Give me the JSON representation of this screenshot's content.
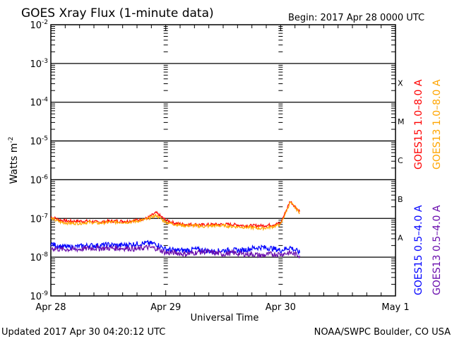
{
  "chart_data": {
    "type": "line",
    "title": "GOES Xray Flux (1-minute data)",
    "begin_label": "Begin:  2017 Apr 28 0000 UTC",
    "xlabel": "Universal Time",
    "ylabel": "Watts m",
    "ylabel_sup": "-2",
    "x_unit": "hours since 2017 Apr 28 0000 UTC",
    "xlim": [
      0,
      72
    ],
    "x_ticks": [
      {
        "v": 0,
        "label": "Apr 28"
      },
      {
        "v": 24,
        "label": "Apr 29"
      },
      {
        "v": 48,
        "label": "Apr 30"
      },
      {
        "v": 72,
        "label": "May 1"
      }
    ],
    "yscale": "log",
    "ylim": [
      1e-09,
      0.01
    ],
    "y_ticks": [
      {
        "exp": -2
      },
      {
        "exp": -3
      },
      {
        "exp": -4
      },
      {
        "exp": -5
      },
      {
        "exp": -6
      },
      {
        "exp": -7
      },
      {
        "exp": -8
      },
      {
        "exp": -9
      }
    ],
    "grid": "horizontal at decades",
    "flare_classes": [
      "X",
      "M",
      "C",
      "B",
      "A"
    ],
    "x": [
      0,
      2,
      4,
      6,
      8,
      10,
      12,
      14,
      16,
      18,
      20,
      22,
      24,
      26,
      28,
      30,
      32,
      34,
      36,
      38,
      40,
      42,
      44,
      46,
      48,
      50,
      52
    ],
    "series": [
      {
        "name": "GOES15 1.0-8.0 A",
        "color": "#ff0000",
        "values": [
          1.1e-07,
          9e-08,
          8.5e-08,
          8.5e-08,
          8.5e-08,
          8e-08,
          8.5e-08,
          8.5e-08,
          8.5e-08,
          9e-08,
          1e-07,
          1.4e-07,
          9e-08,
          7.5e-08,
          7e-08,
          7e-08,
          6.8e-08,
          7e-08,
          7e-08,
          7e-08,
          6.6e-08,
          6.5e-08,
          6.5e-08,
          6.8e-08,
          7.5e-08,
          2.8e-07,
          1.5e-07
        ]
      },
      {
        "name": "GOES13 1.0-8.0 A",
        "color": "#ffa500",
        "values": [
          1e-07,
          8e-08,
          7.5e-08,
          7.5e-08,
          8e-08,
          7.5e-08,
          8e-08,
          8e-08,
          8e-08,
          8.5e-08,
          9.5e-08,
          1.2e-07,
          8e-08,
          7e-08,
          6.5e-08,
          6.5e-08,
          6.2e-08,
          6.5e-08,
          6.5e-08,
          6.2e-08,
          6e-08,
          5.8e-08,
          5.5e-08,
          6e-08,
          7e-08,
          2.6e-07,
          1.4e-07
        ]
      },
      {
        "name": "GOES15 0.5-4.0 A",
        "color": "#0000ff",
        "values": [
          2.2e-08,
          1.9e-08,
          1.8e-08,
          1.9e-08,
          2e-08,
          2e-08,
          2.1e-08,
          2e-08,
          2.1e-08,
          2.2e-08,
          2.3e-08,
          2.2e-08,
          1.6e-08,
          1.5e-08,
          1.5e-08,
          1.6e-08,
          1.5e-08,
          1.4e-08,
          1.5e-08,
          1.5e-08,
          1.5e-08,
          1.7e-08,
          1.8e-08,
          1.7e-08,
          1.5e-08,
          1.8e-08,
          1.3e-08
        ]
      },
      {
        "name": "GOES13 0.5-4.0 A",
        "color": "#6a0dad",
        "values": [
          1.7e-08,
          1.6e-08,
          1.6e-08,
          1.6e-08,
          1.7e-08,
          1.7e-08,
          1.7e-08,
          1.7e-08,
          1.7e-08,
          1.6e-08,
          1.8e-08,
          1.7e-08,
          1.3e-08,
          1.3e-08,
          1.2e-08,
          1.3e-08,
          1.4e-08,
          1.3e-08,
          1.2e-08,
          1.3e-08,
          1.2e-08,
          1.2e-08,
          1.1e-08,
          1.2e-08,
          1.2e-08,
          1.3e-08,
          1.1e-08
        ]
      }
    ]
  },
  "footer": {
    "updated": "Updated 2017 Apr 30 04:20:12 UTC",
    "credit": "NOAA/SWPC Boulder, CO USA"
  }
}
